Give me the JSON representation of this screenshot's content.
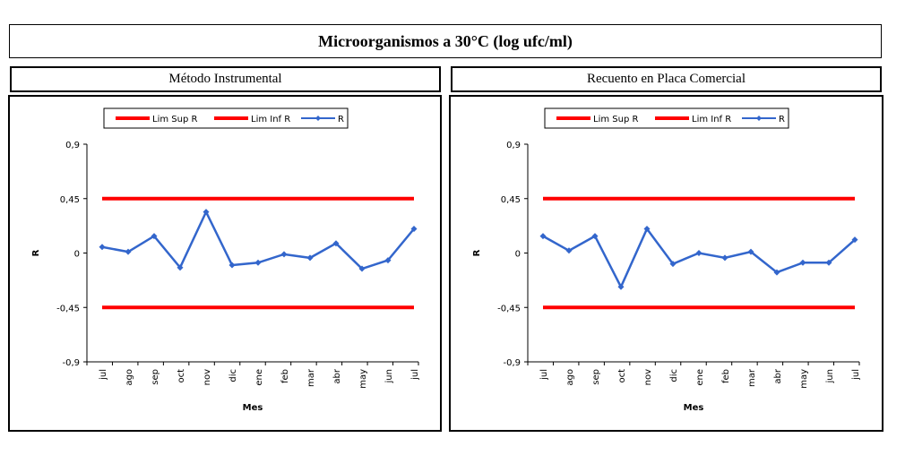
{
  "header": {
    "title": "Microorganismos a 30°C  (log ufc/ml)"
  },
  "chart_data": [
    {
      "type": "line",
      "title": "Método Instrumental",
      "xlabel": "Mes",
      "ylabel": "R",
      "ylim": [
        -0.9,
        0.9
      ],
      "yticks": [
        "0,9",
        "0,45",
        "0",
        "-0,45",
        "-0,9"
      ],
      "ytick_values": [
        0.9,
        0.45,
        0,
        -0.45,
        -0.9
      ],
      "categories": [
        "jul",
        "ago",
        "sep",
        "oct",
        "nov",
        "dic",
        "ene",
        "feb",
        "mar",
        "abr",
        "may",
        "jun",
        "jul"
      ],
      "legend_position": "top",
      "grid": false,
      "series": [
        {
          "name": "Lim Sup R",
          "color": "#ff0000",
          "values": [
            0.45,
            0.45,
            0.45,
            0.45,
            0.45,
            0.45,
            0.45,
            0.45,
            0.45,
            0.45,
            0.45,
            0.45,
            0.45
          ]
        },
        {
          "name": "Lim Inf R",
          "color": "#ff0000",
          "values": [
            -0.45,
            -0.45,
            -0.45,
            -0.45,
            -0.45,
            -0.45,
            -0.45,
            -0.45,
            -0.45,
            -0.45,
            -0.45,
            -0.45,
            -0.45
          ]
        },
        {
          "name": "R",
          "color": "#3366cc",
          "values": [
            0.05,
            0.01,
            0.14,
            -0.12,
            0.34,
            -0.1,
            -0.08,
            -0.01,
            -0.04,
            0.08,
            -0.13,
            -0.06,
            0.2
          ]
        }
      ]
    },
    {
      "type": "line",
      "title": "Recuento en Placa Comercial",
      "xlabel": "Mes",
      "ylabel": "R",
      "ylim": [
        -0.9,
        0.9
      ],
      "yticks": [
        "0,9",
        "0,45",
        "0",
        "-0,45",
        "-0,9"
      ],
      "ytick_values": [
        0.9,
        0.45,
        0,
        -0.45,
        -0.9
      ],
      "categories": [
        "jul",
        "ago",
        "sep",
        "oct",
        "nov",
        "dic",
        "ene",
        "feb",
        "mar",
        "abr",
        "may",
        "jun",
        "jul"
      ],
      "legend_position": "top",
      "grid": false,
      "series": [
        {
          "name": "Lim Sup R",
          "color": "#ff0000",
          "values": [
            0.45,
            0.45,
            0.45,
            0.45,
            0.45,
            0.45,
            0.45,
            0.45,
            0.45,
            0.45,
            0.45,
            0.45,
            0.45
          ]
        },
        {
          "name": "Lim Inf R",
          "color": "#ff0000",
          "values": [
            -0.45,
            -0.45,
            -0.45,
            -0.45,
            -0.45,
            -0.45,
            -0.45,
            -0.45,
            -0.45,
            -0.45,
            -0.45,
            -0.45,
            -0.45
          ]
        },
        {
          "name": "R",
          "color": "#3366cc",
          "values": [
            0.14,
            0.02,
            0.14,
            -0.28,
            0.2,
            -0.09,
            0.0,
            -0.04,
            0.01,
            -0.16,
            -0.08,
            -0.08,
            0.11
          ]
        }
      ]
    }
  ]
}
